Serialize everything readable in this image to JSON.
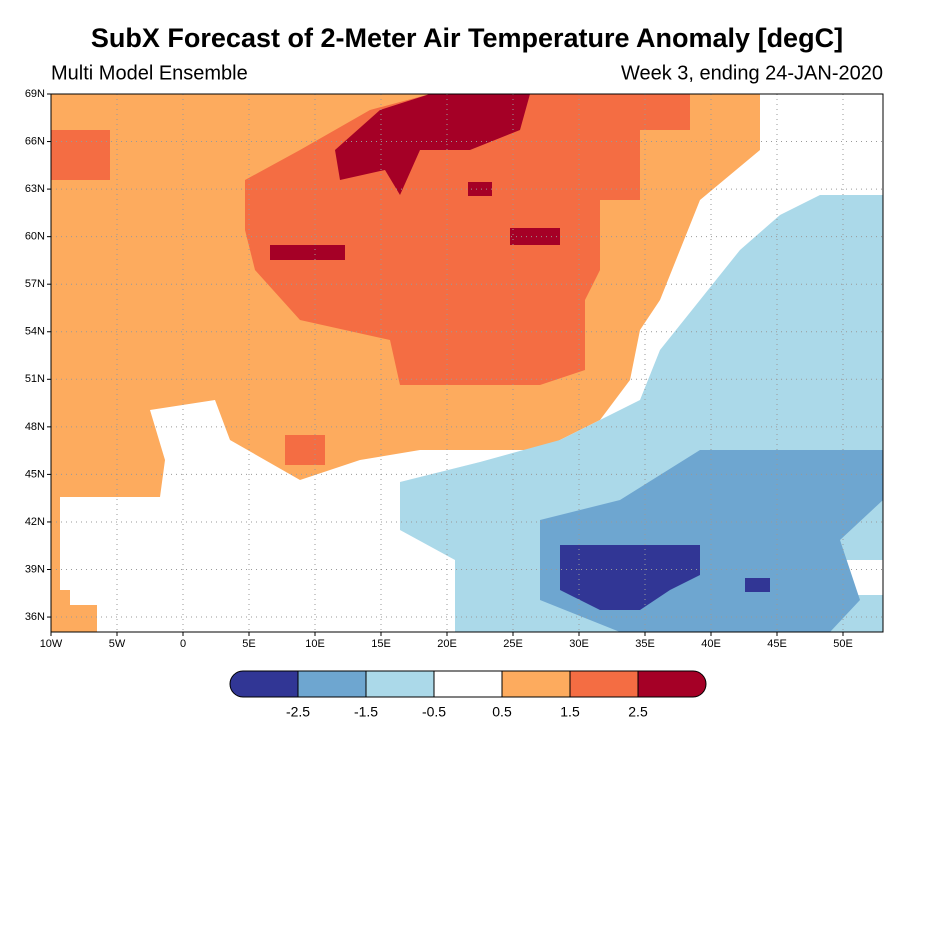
{
  "title": "SubX Forecast of 2-Meter Air Temperature Anomaly [degC]",
  "subtitle_left": "Multi Model Ensemble",
  "subtitle_right": "Week 3, ending 24-JAN-2020",
  "map": {
    "lat_labels": [
      "69N",
      "66N",
      "63N",
      "60N",
      "57N",
      "54N",
      "51N",
      "48N",
      "45N",
      "42N",
      "39N",
      "36N"
    ],
    "lon_labels": [
      "10W",
      "5W",
      "0",
      "5E",
      "10E",
      "15E",
      "20E",
      "25E",
      "30E",
      "35E",
      "40E",
      "45E",
      "50E"
    ]
  },
  "colorbar": {
    "colors": [
      "#313695",
      "#6ea6d0",
      "#abd9e9",
      "#ffffff",
      "#fdab5e",
      "#f46d43",
      "#a50026"
    ],
    "labels": [
      -2.5,
      -1.5,
      -0.5,
      0.5,
      1.5,
      2.5
    ]
  }
}
